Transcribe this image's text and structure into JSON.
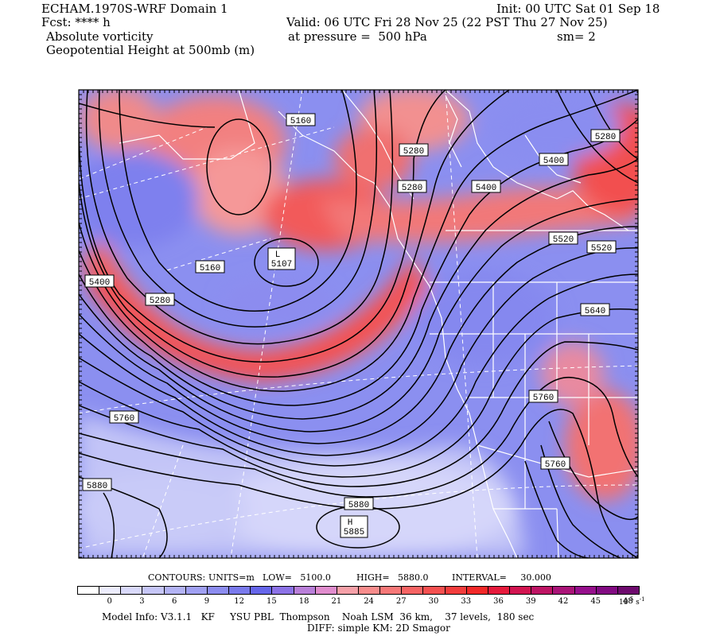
{
  "header": {
    "model": "ECHAM.1970S-WRF Domain 1",
    "fcst": "Fcst: **** h",
    "field1": "Absolute vorticity",
    "field2": "Geopotential Height at 500mb (m)",
    "init": "Init: 00 UTC Sat 01 Sep 18",
    "valid": "Valid: 06 UTC Fri 28 Nov 25 (22 PST Thu 27 Nov 25)",
    "pressure": "at pressure =  500 hPa",
    "smoothing": "sm= 2"
  },
  "contour_labels": [
    {
      "text": "5160"
    },
    {
      "text": "5280"
    },
    {
      "text": "5280"
    },
    {
      "text": "5400"
    },
    {
      "text": "5280"
    },
    {
      "text": "5400"
    },
    {
      "text": "5520"
    },
    {
      "text": "5520"
    },
    {
      "text": "5160"
    },
    {
      "text": "5400"
    },
    {
      "text": "5280"
    },
    {
      "text": "5640"
    },
    {
      "text": "5760"
    },
    {
      "text": "5760"
    },
    {
      "text": "5760"
    },
    {
      "text": "5880"
    },
    {
      "text": "5880"
    }
  ],
  "extrema": {
    "low": {
      "marker": "L",
      "value": "5107"
    },
    "high": {
      "marker": "H",
      "value": "5885"
    }
  },
  "contours_info": {
    "contours": "CONTOURS:",
    "units": "UNITS=m",
    "low": "LOW=   5100.0",
    "high": "HIGH=   5880.0",
    "interval": "INTERVAL=     30.000"
  },
  "colorbar": {
    "ticks": [
      "0",
      "3",
      "6",
      "9",
      "12",
      "15",
      "18",
      "21",
      "24",
      "27",
      "30",
      "33",
      "36",
      "39",
      "42",
      "45",
      "48"
    ],
    "unit_base": "10",
    "unit_exp": "-5",
    "unit_suffix": "s",
    "unit_suffix_exp": "-1",
    "colors": [
      "#ffffff",
      "#ececfc",
      "#d9d9fa",
      "#c6c6f7",
      "#b3b3f4",
      "#a0a0f2",
      "#8c8cef",
      "#7a7aec",
      "#6666ea",
      "#8c72e6",
      "#b97fd9",
      "#e08ccd",
      "#f5a0a8",
      "#f78c8c",
      "#f67878",
      "#f66464",
      "#f45050",
      "#f23c3c",
      "#f22828",
      "#e61a3c",
      "#d21450",
      "#be1464",
      "#aa1478",
      "#960f8c",
      "#820a82",
      "#6e0a6e"
    ]
  },
  "footer": {
    "line1": "Model Info: V3.1.1   KF     YSU PBL  Thompson    Noah LSM  36 km,    37 levels,  180 sec",
    "line2": "DIFF: simple KM: 2D Smagor"
  }
}
